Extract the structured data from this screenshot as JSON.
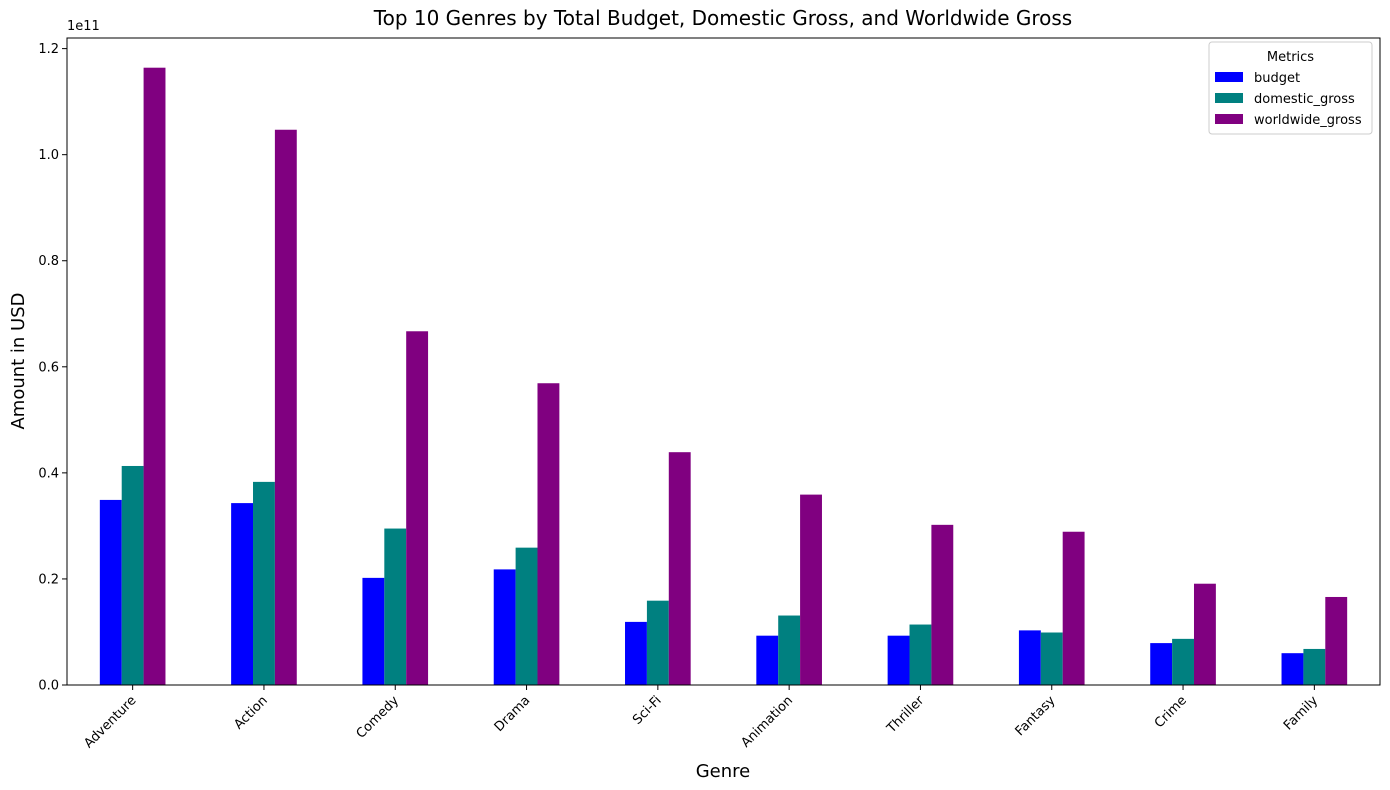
{
  "chart_data": {
    "type": "bar",
    "title": "Top 10 Genres by Total Budget, Domestic Gross, and Worldwide Gross",
    "xlabel": "Genre",
    "ylabel": "Amount in USD",
    "offset_text": "1e11",
    "categories": [
      "Adventure",
      "Action",
      "Comedy",
      "Drama",
      "Sci-Fi",
      "Animation",
      "Thriller",
      "Fantasy",
      "Crime",
      "Family"
    ],
    "series": [
      {
        "name": "budget",
        "color": "#0000ff",
        "values": [
          34900000000,
          34300000000,
          20200000000,
          21800000000,
          11900000000,
          9300000000,
          9300000000,
          10300000000,
          7900000000,
          6000000000
        ]
      },
      {
        "name": "domestic_gross",
        "color": "#008080",
        "values": [
          41300000000,
          38300000000,
          29500000000,
          25900000000,
          15900000000,
          13100000000,
          11400000000,
          9900000000,
          8700000000,
          6800000000
        ]
      },
      {
        "name": "worldwide_gross",
        "color": "#800080",
        "values": [
          116400000000,
          104700000000,
          66700000000,
          56900000000,
          43900000000,
          35900000000,
          30200000000,
          28900000000,
          19100000000,
          16600000000
        ]
      }
    ],
    "ylim": [
      0,
      122000000000
    ],
    "yticks": [
      0,
      20000000000,
      40000000000,
      60000000000,
      80000000000,
      100000000000,
      120000000000
    ],
    "ytick_labels": [
      "0.0",
      "0.2",
      "0.4",
      "0.6",
      "0.8",
      "1.0",
      "1.2"
    ],
    "grid": false,
    "legend": {
      "title": "Metrics",
      "placement": "top-right"
    }
  }
}
